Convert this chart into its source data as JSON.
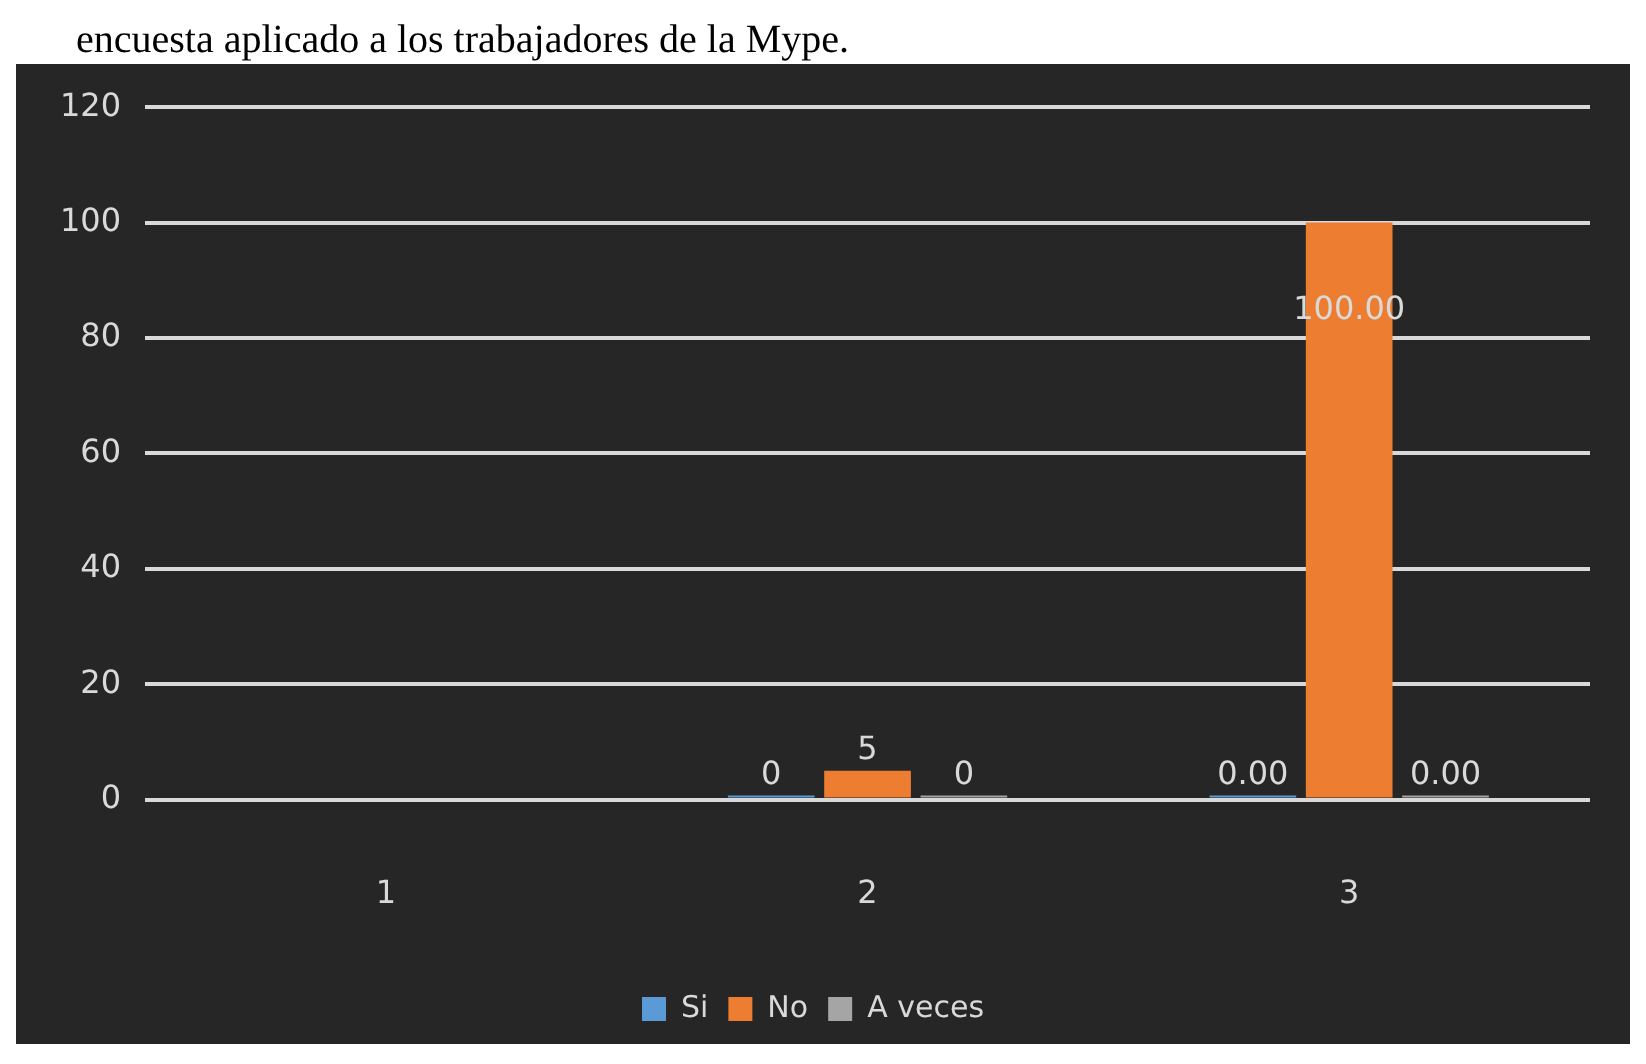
{
  "chart_data": {
    "type": "bar",
    "title": "encuesta aplicado a los trabajadores de la Mype.",
    "categories": [
      "1",
      "2",
      "3"
    ],
    "series": [
      {
        "name": "Si",
        "color": "#5b9bd5",
        "values": [
          null,
          0,
          0
        ],
        "value_labels": [
          null,
          "0",
          "0.00"
        ]
      },
      {
        "name": "No",
        "color": "#ed7d31",
        "values": [
          null,
          5,
          100
        ],
        "value_labels": [
          null,
          "5",
          "100.00"
        ]
      },
      {
        "name": "A veces",
        "color": "#a5a5a5",
        "values": [
          null,
          0,
          0
        ],
        "value_labels": [
          null,
          "0",
          "0.00"
        ]
      }
    ],
    "ylim": [
      0,
      120
    ],
    "yticks": [
      0,
      20,
      40,
      60,
      80,
      100,
      120
    ],
    "grid": "y",
    "legend": "bottom"
  }
}
